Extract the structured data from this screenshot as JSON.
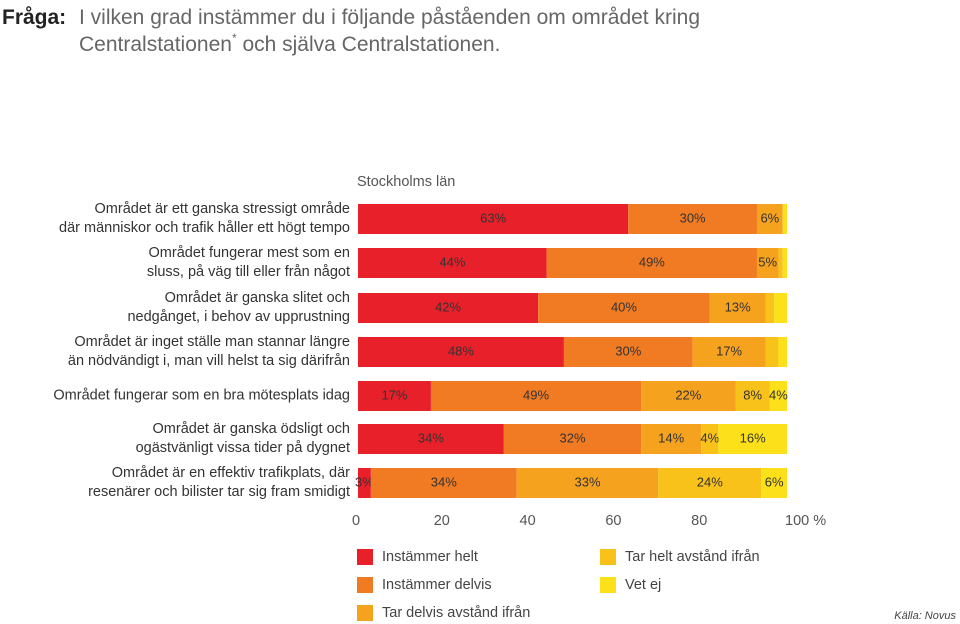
{
  "chart_data": {
    "type": "stacked-bar-horizontal",
    "title_label": "Fråga:",
    "question_line1": "I vilken grad instämmer du i följande påståenden om området kring",
    "question_line2_a": "Centralstationen",
    "footnote_mark": "*",
    "question_line2_b": " och själva Centralstationen.",
    "subtitle": "Stockholms län",
    "source": "Källa: Novus",
    "categories": [
      "Området är ett ganska stressigt område\ndär människor och trafik håller ett högt tempo",
      "Området fungerar mest som en\nsluss, på väg till eller från något",
      "Området är ganska slitet och\nnedgånget, i behov av upprustning",
      "Området är inget ställe man stannar längre\nän nödvändigt i, man vill helst ta sig därifrån",
      "Området fungerar som en bra mötesplats idag",
      "Området är ganska ödsligt och\nogästvänligt vissa tider på dygnet",
      "Området är en effektiv trafikplats, där\nresenärer och bilister tar sig fram smidigt"
    ],
    "series": [
      {
        "name": "Instämmer helt",
        "color": "#e8202a",
        "values": [
          63,
          44,
          42,
          48,
          17,
          34,
          3
        ],
        "value_labels": [
          "63%",
          "44%",
          "42%",
          "48%",
          "17%",
          "34%",
          "3%"
        ]
      },
      {
        "name": "Instämmer delvis",
        "color": "#f07b22",
        "values": [
          30,
          49,
          40,
          30,
          49,
          32,
          34
        ],
        "value_labels": [
          "30%",
          "49%",
          "40%",
          "30%",
          "49%",
          "32%",
          "34%"
        ]
      },
      {
        "name": "Tar delvis avstånd ifrån",
        "color": "#f5a21f",
        "values": [
          6,
          5,
          13,
          17,
          22,
          14,
          33
        ],
        "value_labels": [
          "6%",
          "5%",
          "13%",
          "17%",
          "22%",
          "14%",
          "33%"
        ]
      },
      {
        "name": "Tar helt avstånd ifrån",
        "color": "#f8c21a",
        "values": [
          null,
          1,
          2,
          3,
          8,
          4,
          24
        ],
        "value_labels": [
          null,
          null,
          null,
          null,
          "8%",
          "4%",
          "24%"
        ]
      },
      {
        "name": "Vet ej",
        "color": "#fbe01a",
        "values": [
          1,
          1,
          3,
          2,
          4,
          16,
          6
        ],
        "value_labels": [
          null,
          null,
          null,
          null,
          "4%",
          "16%",
          "6%"
        ]
      }
    ],
    "xlim": [
      0,
      100
    ],
    "xticks": [
      0,
      20,
      40,
      60,
      80,
      {
        "value": 100,
        "label": "100 %"
      }
    ]
  }
}
